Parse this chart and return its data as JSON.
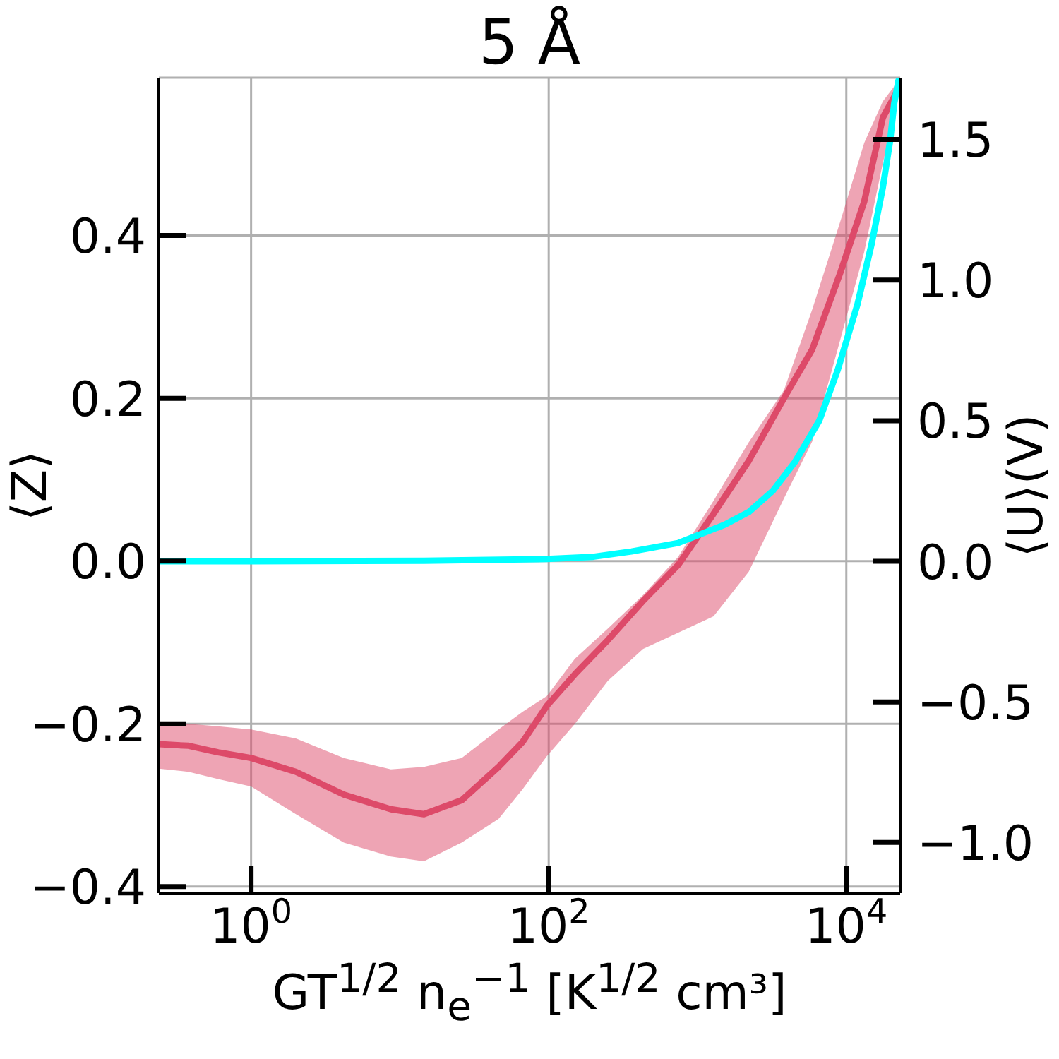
{
  "chart_data": {
    "type": "line",
    "title": "5 Å",
    "xlabel": "GT$^{1/2}$ n$_{e}$$^{−1}$ [K$^{1/2}$ cm³]",
    "ylabel": "⟨Z⟩",
    "y2label": "⟨U⟩(V)",
    "log": "x",
    "grid": true,
    "xlim": [
      0.24,
      23000
    ],
    "xticks": [
      {
        "value": 1,
        "label": "10$^{0}$"
      },
      {
        "value": 100,
        "label": "10$^{2}$"
      },
      {
        "value": 10000,
        "label": "10$^{4}$"
      }
    ],
    "ylim": [
      -0.408,
      0.594
    ],
    "yticks": [
      {
        "value": -0.4,
        "label": "−0.4"
      },
      {
        "value": -0.2,
        "label": "−0.2"
      },
      {
        "value": 0,
        "label": "0.0"
      },
      0.2,
      0.4
    ],
    "y2lim": [
      -1.18,
      1.72
    ],
    "y2ticks": [
      {
        "value": -1,
        "label": "−1.0"
      },
      {
        "value": -0.5,
        "label": "−0.5"
      },
      {
        "value": 0,
        "label": "0.0"
      },
      0.5,
      {
        "value": 1,
        "label": "1.0"
      },
      1.5
    ],
    "series": [
      {
        "color": "#dd4a69",
        "x": [
          0.24,
          0.38,
          0.6,
          1,
          2,
          4.2,
          8.7,
          14.5,
          26,
          46,
          67,
          97,
          150,
          250,
          430,
          740,
          1280,
          2210,
          3810,
          5900,
          9140,
          13200,
          17600,
          22400
        ],
        "values": [
          -0.225,
          -0.227,
          -0.235,
          -0.242,
          -0.259,
          -0.287,
          -0.305,
          -0.311,
          -0.294,
          -0.253,
          -0.222,
          -0.178,
          -0.139,
          -0.097,
          -0.049,
          -0.005,
          0.058,
          0.123,
          0.2,
          0.26,
          0.355,
          0.442,
          0.545,
          0.58
        ],
        "lower": [
          -0.255,
          -0.259,
          -0.268,
          -0.277,
          -0.311,
          -0.346,
          -0.363,
          -0.369,
          -0.346,
          -0.317,
          -0.28,
          -0.24,
          -0.2,
          -0.147,
          -0.108,
          -0.088,
          -0.068,
          -0.013,
          0.077,
          0.147,
          0.273,
          0.38,
          0.489,
          0.57
        ],
        "upper": [
          -0.2,
          -0.2,
          -0.203,
          -0.207,
          -0.218,
          -0.242,
          -0.256,
          -0.253,
          -0.242,
          -0.207,
          -0.185,
          -0.166,
          -0.12,
          -0.083,
          -0.042,
          0.005,
          0.074,
          0.146,
          0.21,
          0.309,
          0.418,
          0.514,
          0.565,
          0.59
        ]
      },
      {
        "axis": "y2",
        "color": "#00ffff",
        "x": [
          0.24,
          1,
          14.5,
          97,
          199,
          360,
          740,
          1520,
          2210,
          3200,
          4540,
          6580,
          8750,
          11900,
          14800,
          17600,
          19700,
          21000,
          22400
        ],
        "values": [
          0,
          0,
          0.002,
          0.008,
          0.016,
          0.035,
          0.065,
          0.13,
          0.175,
          0.25,
          0.355,
          0.5,
          0.68,
          0.915,
          1.129,
          1.33,
          1.496,
          1.63,
          1.71
        ]
      }
    ]
  }
}
